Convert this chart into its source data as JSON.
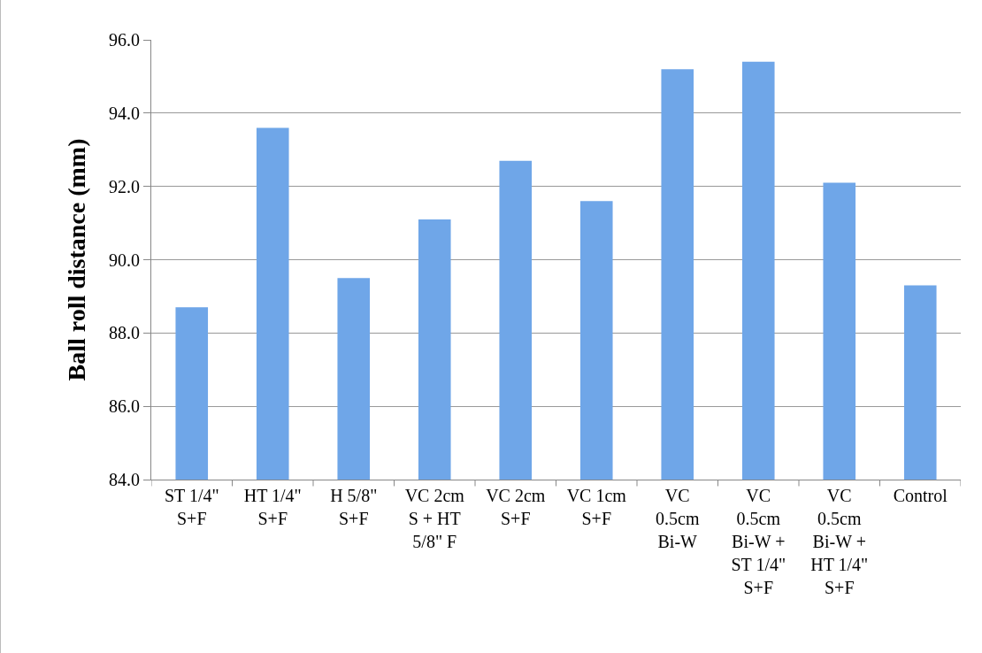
{
  "chart_data": {
    "type": "bar",
    "ylabel": "Ball roll distance (mm)",
    "categories": [
      "ST 1/4\"\nS+F",
      "HT 1/4\"\nS+F",
      "H 5/8\"\nS+F",
      "VC 2cm\nS + HT\n5/8\" F",
      "VC 2cm\nS+F",
      "VC 1cm\nS+F",
      "VC\n0.5cm\nBi-W",
      "VC\n0.5cm\nBi-W +\nST 1/4\"\nS+F",
      "VC\n0.5cm\nBi-W +\nHT 1/4\"\nS+F",
      "Control"
    ],
    "values": [
      88.7,
      93.6,
      89.5,
      91.1,
      92.7,
      91.6,
      95.2,
      95.4,
      92.1,
      89.3
    ],
    "color": "#6fa6e8",
    "ylim": [
      84,
      96
    ],
    "yticks": [
      {
        "value": 84,
        "label": "84.0"
      },
      {
        "value": 86,
        "label": "86.0"
      },
      {
        "value": 88,
        "label": "88.0"
      },
      {
        "value": 90,
        "label": "90.0"
      },
      {
        "value": 92,
        "label": "92.0"
      },
      {
        "value": 94,
        "label": "94.0"
      },
      {
        "value": 96,
        "label": "96.0"
      }
    ],
    "grid": "y"
  }
}
